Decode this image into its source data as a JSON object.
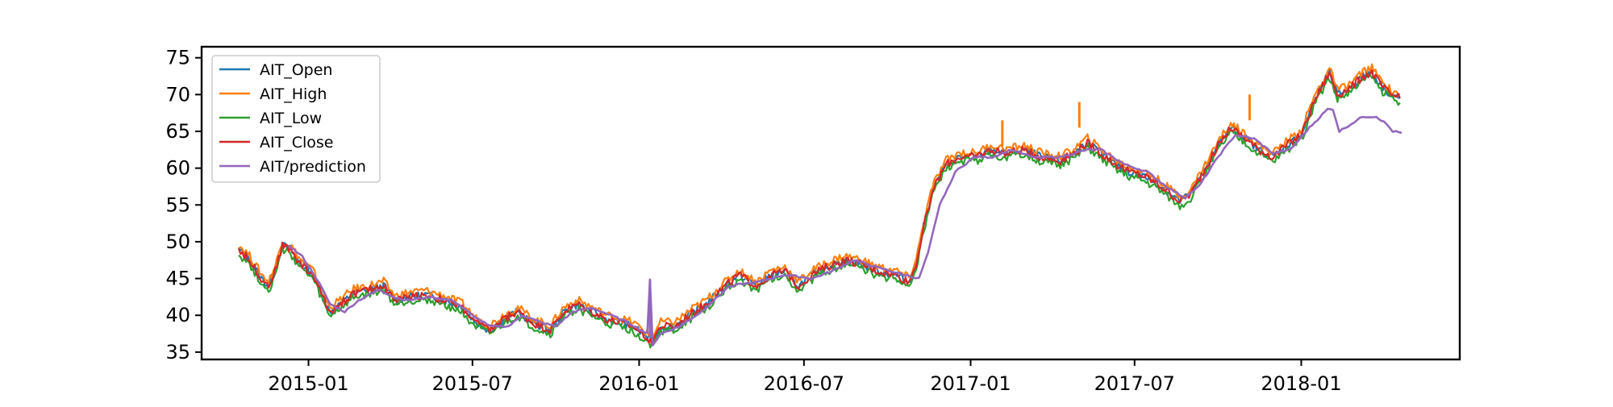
{
  "chart_data": {
    "type": "line",
    "title": "",
    "xlabel": "",
    "ylabel": "",
    "x_ticks": [
      "2015-01",
      "2015-07",
      "2016-01",
      "2016-07",
      "2017-01",
      "2017-07",
      "2018-01"
    ],
    "y_ticks": [
      35,
      40,
      45,
      50,
      55,
      60,
      65,
      70,
      75
    ],
    "xlim": [
      "2014-09-05",
      "2018-06-25"
    ],
    "ylim": [
      34,
      76.5
    ],
    "grid": false,
    "legend_position": "top-left",
    "series": [
      {
        "name": "AIT_Open",
        "color": "#1f77b4",
        "offset": 0.0
      },
      {
        "name": "AIT_High",
        "color": "#ff7f0e",
        "offset": 0.6
      },
      {
        "name": "AIT_Low",
        "color": "#2ca02c",
        "offset": -0.6
      },
      {
        "name": "AIT_Close",
        "color": "#d62728",
        "offset": 0.0
      },
      {
        "name": "AIT/prediction",
        "color": "#9467bd",
        "offset": 0.0
      }
    ],
    "price_path": [
      [
        "2014-10-16",
        49.0
      ],
      [
        "2014-10-28",
        47.5
      ],
      [
        "2014-11-10",
        45.0
      ],
      [
        "2014-11-18",
        44.0
      ],
      [
        "2014-11-25",
        46.0
      ],
      [
        "2014-12-03",
        49.5
      ],
      [
        "2014-12-12",
        49.0
      ],
      [
        "2014-12-23",
        47.0
      ],
      [
        "2015-01-06",
        45.5
      ],
      [
        "2015-01-15",
        43.0
      ],
      [
        "2015-01-24",
        40.5
      ],
      [
        "2015-02-05",
        41.5
      ],
      [
        "2015-02-20",
        43.0
      ],
      [
        "2015-03-10",
        43.5
      ],
      [
        "2015-03-25",
        44.0
      ],
      [
        "2015-04-07",
        42.0
      ],
      [
        "2015-04-20",
        42.5
      ],
      [
        "2015-05-10",
        42.8
      ],
      [
        "2015-06-01",
        42.0
      ],
      [
        "2015-06-20",
        41.0
      ],
      [
        "2015-07-05",
        39.0
      ],
      [
        "2015-07-20",
        38.0
      ],
      [
        "2015-08-05",
        39.5
      ],
      [
        "2015-08-20",
        40.5
      ],
      [
        "2015-09-05",
        39.0
      ],
      [
        "2015-09-25",
        38.0
      ],
      [
        "2015-10-10",
        40.5
      ],
      [
        "2015-10-25",
        41.5
      ],
      [
        "2015-11-10",
        40.5
      ],
      [
        "2015-11-25",
        39.5
      ],
      [
        "2015-12-10",
        39.0
      ],
      [
        "2015-12-25",
        38.5
      ],
      [
        "2016-01-10",
        37.0
      ],
      [
        "2016-01-15",
        36.5
      ],
      [
        "2016-01-25",
        38.5
      ],
      [
        "2016-02-10",
        38.5
      ],
      [
        "2016-02-25",
        40.0
      ],
      [
        "2016-03-15",
        41.5
      ],
      [
        "2016-04-01",
        43.5
      ],
      [
        "2016-04-20",
        45.5
      ],
      [
        "2016-05-10",
        44.0
      ],
      [
        "2016-05-25",
        45.5
      ],
      [
        "2016-06-10",
        46.0
      ],
      [
        "2016-06-25",
        44.0
      ],
      [
        "2016-07-10",
        45.5
      ],
      [
        "2016-07-25",
        46.5
      ],
      [
        "2016-08-15",
        47.5
      ],
      [
        "2016-09-01",
        47.0
      ],
      [
        "2016-09-20",
        46.0
      ],
      [
        "2016-10-10",
        45.5
      ],
      [
        "2016-10-25",
        44.5
      ],
      [
        "2016-11-02",
        47.0
      ],
      [
        "2016-11-10",
        52.0
      ],
      [
        "2016-11-20",
        57.0
      ],
      [
        "2016-12-05",
        60.5
      ],
      [
        "2016-12-20",
        61.5
      ],
      [
        "2017-01-05",
        61.5
      ],
      [
        "2017-01-25",
        62.5
      ],
      [
        "2017-02-10",
        62.0
      ],
      [
        "2017-03-01",
        62.5
      ],
      [
        "2017-03-20",
        61.5
      ],
      [
        "2017-04-10",
        61.0
      ],
      [
        "2017-04-25",
        62.0
      ],
      [
        "2017-05-10",
        63.5
      ],
      [
        "2017-05-25",
        62.0
      ],
      [
        "2017-06-10",
        60.5
      ],
      [
        "2017-06-25",
        59.5
      ],
      [
        "2017-07-10",
        59.0
      ],
      [
        "2017-07-25",
        58.0
      ],
      [
        "2017-08-10",
        56.5
      ],
      [
        "2017-08-20",
        55.5
      ],
      [
        "2017-09-01",
        56.5
      ],
      [
        "2017-09-15",
        59.5
      ],
      [
        "2017-10-01",
        63.0
      ],
      [
        "2017-10-15",
        65.5
      ],
      [
        "2017-11-01",
        64.0
      ],
      [
        "2017-11-15",
        62.5
      ],
      [
        "2017-12-01",
        61.5
      ],
      [
        "2017-12-15",
        63.0
      ],
      [
        "2018-01-01",
        64.5
      ],
      [
        "2018-01-15",
        69.0
      ],
      [
        "2018-02-01",
        73.0
      ],
      [
        "2018-02-10",
        70.0
      ],
      [
        "2018-02-25",
        71.0
      ],
      [
        "2018-03-10",
        72.5
      ],
      [
        "2018-03-20",
        73.0
      ],
      [
        "2018-04-01",
        71.0
      ],
      [
        "2018-04-10",
        70.0
      ],
      [
        "2018-04-20",
        69.5
      ]
    ],
    "prediction_path": [
      [
        "2014-12-10",
        49.5
      ],
      [
        "2014-12-25",
        48.0
      ],
      [
        "2015-01-10",
        45.0
      ],
      [
        "2015-01-25",
        41.5
      ],
      [
        "2015-02-10",
        40.5
      ],
      [
        "2015-02-25",
        42.0
      ],
      [
        "2015-03-20",
        43.5
      ],
      [
        "2015-04-05",
        42.5
      ],
      [
        "2015-04-20",
        42.0
      ],
      [
        "2015-05-15",
        42.5
      ],
      [
        "2015-06-10",
        42.0
      ],
      [
        "2015-07-01",
        40.0
      ],
      [
        "2015-07-20",
        38.5
      ],
      [
        "2015-08-10",
        38.5
      ],
      [
        "2015-08-25",
        40.0
      ],
      [
        "2015-09-15",
        39.0
      ],
      [
        "2015-10-01",
        38.5
      ],
      [
        "2015-10-20",
        40.5
      ],
      [
        "2015-11-10",
        41.0
      ],
      [
        "2015-12-01",
        40.0
      ],
      [
        "2015-12-20",
        39.0
      ],
      [
        "2016-01-10",
        37.5
      ],
      [
        "2016-01-13",
        44.8
      ],
      [
        "2016-01-16",
        36.0
      ],
      [
        "2016-01-25",
        37.5
      ],
      [
        "2016-02-15",
        38.5
      ],
      [
        "2016-03-10",
        40.5
      ],
      [
        "2016-04-10",
        44.0
      ],
      [
        "2016-05-10",
        44.5
      ],
      [
        "2016-06-10",
        45.5
      ],
      [
        "2016-07-10",
        45.0
      ],
      [
        "2016-08-01",
        46.0
      ],
      [
        "2016-08-25",
        47.5
      ],
      [
        "2016-09-20",
        46.5
      ],
      [
        "2016-10-20",
        45.5
      ],
      [
        "2016-11-05",
        45.0
      ],
      [
        "2016-11-15",
        48.5
      ],
      [
        "2016-11-28",
        55.0
      ],
      [
        "2016-12-15",
        59.5
      ],
      [
        "2017-01-05",
        61.5
      ],
      [
        "2017-01-25",
        61.5
      ],
      [
        "2017-02-15",
        62.5
      ],
      [
        "2017-03-10",
        61.5
      ],
      [
        "2017-04-10",
        61.5
      ],
      [
        "2017-05-10",
        62.5
      ],
      [
        "2017-05-25",
        62.5
      ],
      [
        "2017-06-20",
        60.5
      ],
      [
        "2017-07-15",
        59.5
      ],
      [
        "2017-08-05",
        57.5
      ],
      [
        "2017-08-25",
        56.0
      ],
      [
        "2017-09-10",
        57.5
      ],
      [
        "2017-10-01",
        61.5
      ],
      [
        "2017-10-20",
        64.5
      ],
      [
        "2017-11-10",
        64.0
      ],
      [
        "2017-12-01",
        62.0
      ],
      [
        "2017-12-20",
        62.5
      ],
      [
        "2018-01-10",
        65.5
      ],
      [
        "2018-01-30",
        68.0
      ],
      [
        "2018-02-05",
        68.0
      ],
      [
        "2018-02-12",
        65.0
      ],
      [
        "2018-02-25",
        66.0
      ],
      [
        "2018-03-10",
        67.0
      ],
      [
        "2018-03-25",
        67.0
      ],
      [
        "2018-04-05",
        66.0
      ],
      [
        "2018-04-12",
        65.0
      ],
      [
        "2018-04-22",
        64.8
      ]
    ],
    "spikes": [
      {
        "series": "AIT_High",
        "date": "2017-02-05",
        "value": 66.5
      },
      {
        "series": "AIT_High",
        "date": "2017-05-01",
        "value": 69.0
      },
      {
        "series": "AIT_High",
        "date": "2017-11-05",
        "value": 70.0
      },
      {
        "series": "AIT/prediction",
        "date": "2016-01-13",
        "value": 44.8
      }
    ]
  }
}
